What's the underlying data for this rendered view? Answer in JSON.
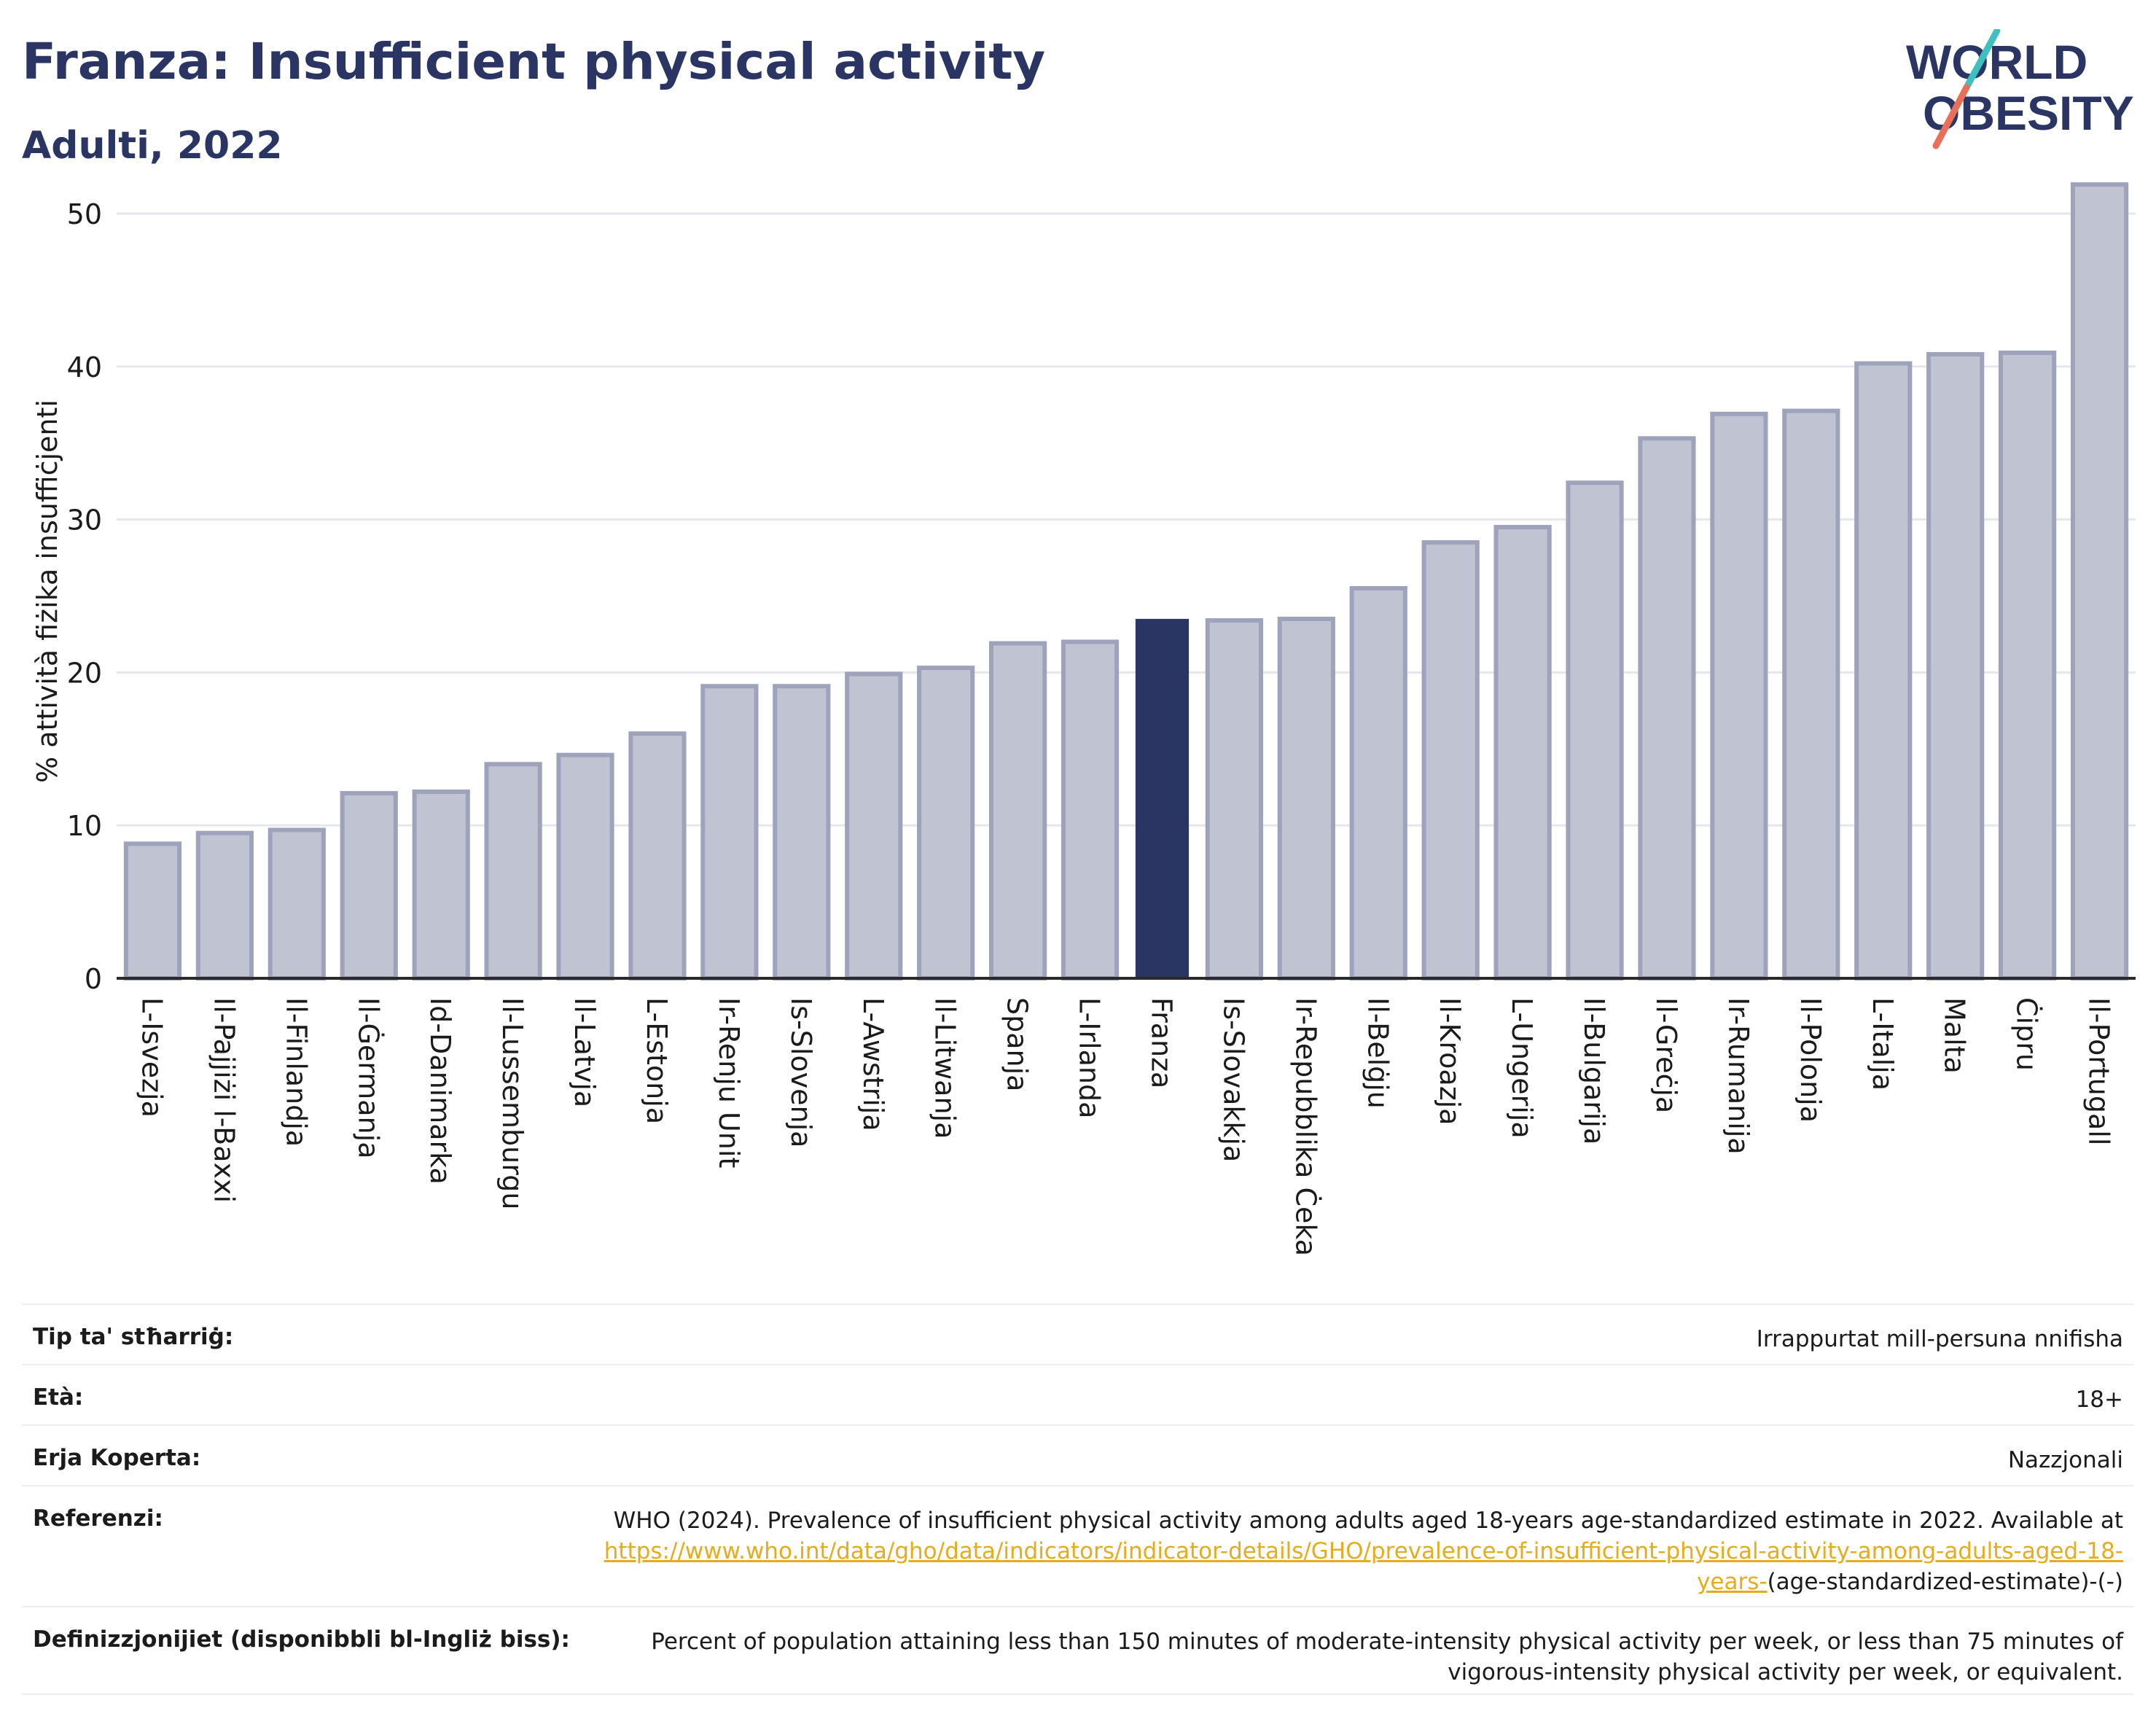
{
  "header": {
    "title": "Franza: Insufficient physical activity",
    "subtitle": "Adulti, 2022"
  },
  "logo": {
    "line1": "WORLD",
    "line2": "OBESITY",
    "colors": {
      "text": "#2a3563",
      "slash_teal": "#3fbfbf",
      "slash_coral": "#e8705a"
    }
  },
  "colors": {
    "bar": "#c0c3d1",
    "bar_border": "#9ea3bb",
    "highlight": "#2a3563",
    "grid": "#e6e7ec",
    "axis": "#2a2a2a"
  },
  "chart_data": {
    "type": "bar",
    "ylabel": "% attività fiżika insuffiċjenti",
    "xlabel": "",
    "ylim": [
      0,
      53
    ],
    "yticks": [
      0,
      10,
      20,
      30,
      40,
      50
    ],
    "grid": true,
    "highlight": "Franza",
    "categories": [
      "L-Isvezja",
      "Il-Pajjiżi l-Baxxi",
      "Il-Finlandja",
      "Il-Ġermanja",
      "Id-Danimarka",
      "Il-Lussemburgu",
      "Il-Latvja",
      "L-Estonja",
      "Ir-Renju Unit",
      "Is-Slovenja",
      "L-Awstrija",
      "Il-Litwanja",
      "Spanja",
      "L-Irlanda",
      "Franza",
      "Is-Slovakkja",
      "Ir-Repubblika Ċeka",
      "Il-Belġju",
      "Il-Kroazja",
      "L-Ungerija",
      "Il-Bulgarija",
      "Il-Greċja",
      "Ir-Rumanija",
      "Il-Polonja",
      "L-Italja",
      "Malta",
      "Ċipru",
      "Il-Portugall"
    ],
    "values": [
      8.8,
      9.5,
      9.7,
      12.1,
      12.2,
      14.0,
      14.6,
      16.0,
      19.1,
      19.1,
      19.9,
      20.3,
      21.9,
      22.0,
      23.5,
      23.4,
      23.5,
      25.5,
      28.5,
      29.5,
      32.4,
      35.3,
      36.9,
      37.1,
      40.2,
      40.8,
      40.9,
      51.9
    ]
  },
  "info": {
    "rows": [
      {
        "label": "Tip ta' stħarriġ:",
        "value": "Irrappurtat mill-persuna nnifisha"
      },
      {
        "label": "Età:",
        "value": "18+"
      },
      {
        "label": "Erja Koperta:",
        "value": "Nazzjonali"
      }
    ],
    "reference": {
      "label": "Referenzi:",
      "text": "WHO (2024). Prevalence of insufficient physical activity among adults aged 18-years age-standardized estimate in 2022. Available at",
      "link": "https://www.who.int/data/gho/data/indicators/indicator-details/GHO/prevalence-of-insufficient-physical-activity-among-adults-aged-18-years-",
      "suffix": "(age-standardized-estimate)-(-)"
    },
    "definition": {
      "label": "Definizzjonijiet (disponibbli bl-Ingliż biss):",
      "text": "Percent of population attaining less than 150 minutes of moderate-intensity physical activity per week, or less than 75 minutes of vigorous-intensity physical activity per week, or equivalent."
    }
  }
}
